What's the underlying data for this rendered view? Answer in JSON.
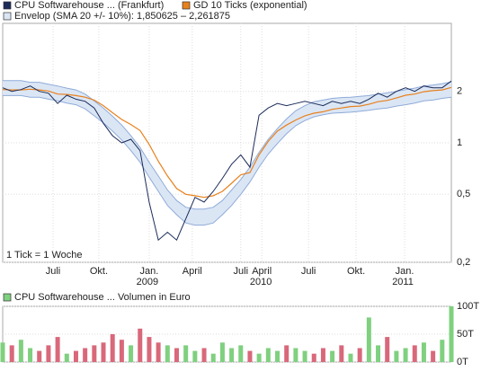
{
  "chart_data": [
    {
      "type": "line",
      "ylog": true,
      "grid": true,
      "note": "1 Tick = 1 Woche",
      "categories": [
        null,
        null,
        null,
        null,
        null,
        null,
        null,
        null,
        null,
        null,
        null,
        null,
        null,
        null,
        null,
        null,
        null,
        null,
        null,
        null,
        null,
        null,
        null,
        null,
        null,
        null,
        null,
        null,
        null,
        null,
        null,
        null,
        null,
        null,
        null,
        null,
        null,
        null,
        null,
        null,
        null,
        null,
        null,
        null,
        null,
        null,
        null,
        null,
        null,
        null
      ],
      "ylim": [
        0.2,
        5
      ],
      "yticks": [
        {
          "value": 2,
          "label": "2"
        },
        {
          "value": 1,
          "label": "1"
        },
        {
          "value": 0.5,
          "label": "0,5"
        },
        {
          "value": 0.2,
          "label": "0,2"
        }
      ],
      "xticks": [
        {
          "value": 5.5,
          "label": "Juli"
        },
        {
          "value": 10.5,
          "label": "Okt."
        },
        {
          "value": 16,
          "label": "Jan."
        },
        {
          "value": 20.7,
          "label": "April"
        },
        {
          "value": 26,
          "label": "Juli"
        },
        {
          "value": 28.3,
          "label": "April"
        },
        {
          "value": 33.4,
          "label": "Juli"
        },
        {
          "value": 38.6,
          "label": "Okt."
        },
        {
          "value": 43.9,
          "label": "Jan."
        }
      ],
      "year_ticks": [
        {
          "value": 15.8,
          "label": "2009"
        },
        {
          "value": 28.2,
          "label": "2010"
        },
        {
          "value": 43.7,
          "label": "2011"
        }
      ],
      "series": [
        {
          "name": "CPU Softwarehouse ... (Frankfurt)",
          "color": "#1c2c5a",
          "values": [
            2.1,
            2.0,
            2.05,
            2.15,
            2.0,
            1.95,
            1.7,
            1.9,
            1.8,
            1.75,
            1.6,
            1.3,
            1.1,
            1.0,
            1.05,
            0.9,
            0.45,
            0.27,
            0.3,
            0.27,
            0.36,
            0.48,
            0.45,
            0.52,
            0.62,
            0.75,
            0.85,
            0.72,
            1.45,
            1.6,
            1.7,
            1.65,
            1.7,
            1.75,
            1.7,
            1.65,
            1.75,
            1.7,
            1.75,
            1.7,
            1.8,
            1.95,
            1.85,
            2.0,
            2.1,
            2.0,
            2.15,
            2.1,
            2.1,
            2.3
          ]
        },
        {
          "name": "GD 10 Ticks (exponential)",
          "color": "#e8811c",
          "values": [
            2.05,
            2.04,
            2.04,
            2.06,
            2.04,
            2.01,
            1.93,
            1.92,
            1.89,
            1.85,
            1.78,
            1.65,
            1.5,
            1.37,
            1.28,
            1.18,
            0.98,
            0.78,
            0.64,
            0.54,
            0.5,
            0.49,
            0.48,
            0.49,
            0.52,
            0.58,
            0.65,
            0.67,
            0.85,
            1.02,
            1.17,
            1.27,
            1.36,
            1.44,
            1.49,
            1.52,
            1.57,
            1.6,
            1.63,
            1.64,
            1.68,
            1.74,
            1.77,
            1.83,
            1.9,
            1.93,
            1.99,
            2.02,
            2.04,
            2.11
          ]
        },
        {
          "name": "Envelop (SMA 20 +/- 10%): 1,850625 – 2,261875",
          "color": "#dbe6f5",
          "edge_color": "#8fabd8",
          "upper": [
            2.31,
            2.31,
            2.31,
            2.26,
            2.26,
            2.2,
            2.15,
            2.09,
            2.04,
            1.93,
            1.76,
            1.6,
            1.43,
            1.27,
            1.1,
            0.94,
            0.77,
            0.64,
            0.53,
            0.46,
            0.42,
            0.41,
            0.41,
            0.42,
            0.46,
            0.53,
            0.61,
            0.72,
            0.88,
            1.05,
            1.21,
            1.38,
            1.54,
            1.65,
            1.74,
            1.78,
            1.82,
            1.84,
            1.85,
            1.87,
            1.89,
            1.93,
            1.96,
            2.0,
            2.05,
            2.09,
            2.15,
            2.18,
            2.22,
            2.27
          ],
          "lower": [
            1.89,
            1.89,
            1.89,
            1.85,
            1.85,
            1.8,
            1.76,
            1.71,
            1.67,
            1.58,
            1.44,
            1.31,
            1.17,
            1.04,
            0.9,
            0.77,
            0.63,
            0.52,
            0.43,
            0.38,
            0.34,
            0.33,
            0.33,
            0.34,
            0.38,
            0.43,
            0.5,
            0.59,
            0.72,
            0.86,
            0.99,
            1.13,
            1.26,
            1.35,
            1.42,
            1.46,
            1.49,
            1.5,
            1.51,
            1.53,
            1.55,
            1.58,
            1.6,
            1.64,
            1.67,
            1.71,
            1.76,
            1.78,
            1.82,
            1.85
          ]
        }
      ]
    },
    {
      "type": "bar",
      "name": "CPU Softwarehouse ... Volumen in Euro",
      "color": "#7fd07f",
      "up_color": "#7fd07f",
      "down_color": "#d9687a",
      "ylim": [
        0,
        100
      ],
      "yticks": [
        {
          "value": 100,
          "label": "100T"
        },
        {
          "value": 50,
          "label": "50T"
        },
        {
          "value": 0,
          "label": "0T"
        }
      ],
      "values": [
        35,
        30,
        40,
        25,
        20,
        30,
        45,
        15,
        20,
        25,
        30,
        35,
        50,
        40,
        30,
        60,
        45,
        35,
        30,
        25,
        30,
        20,
        25,
        15,
        35,
        25,
        30,
        20,
        15,
        25,
        20,
        30,
        25,
        20,
        15,
        25,
        20,
        30,
        15,
        25,
        80,
        30,
        45,
        20,
        25,
        30,
        35,
        20,
        40,
        100
      ]
    }
  ]
}
